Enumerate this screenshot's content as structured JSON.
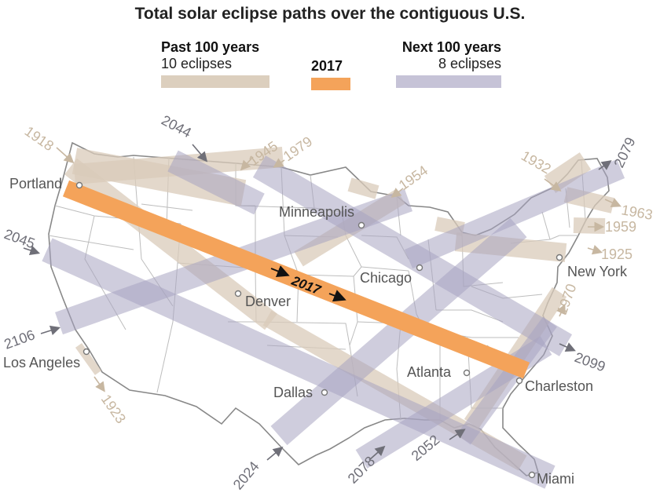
{
  "title": "Total solar eclipse paths over the contiguous U.S.",
  "legend": {
    "past": {
      "heading": "Past 100 years",
      "count": "10 eclipses",
      "color": "#d9cbb9"
    },
    "current": {
      "heading": "2017",
      "color": "#f4a35a"
    },
    "next": {
      "heading": "Next 100 years",
      "count": "8 eclipses",
      "color": "#bcb9cf"
    }
  },
  "cities": [
    "Portland",
    "Minneapolis",
    "Chicago",
    "New York",
    "Denver",
    "Los Angeles",
    "Dallas",
    "Atlanta",
    "Charleston",
    "Miami"
  ],
  "years_past": [
    "1918",
    "1945",
    "1979",
    "1954",
    "1932",
    "1963",
    "1959",
    "1925",
    "1970",
    "1923"
  ],
  "years_next": [
    "2044",
    "2079",
    "2045",
    "2106",
    "2099",
    "2024",
    "2078",
    "2052"
  ],
  "year_2017": "2017"
}
